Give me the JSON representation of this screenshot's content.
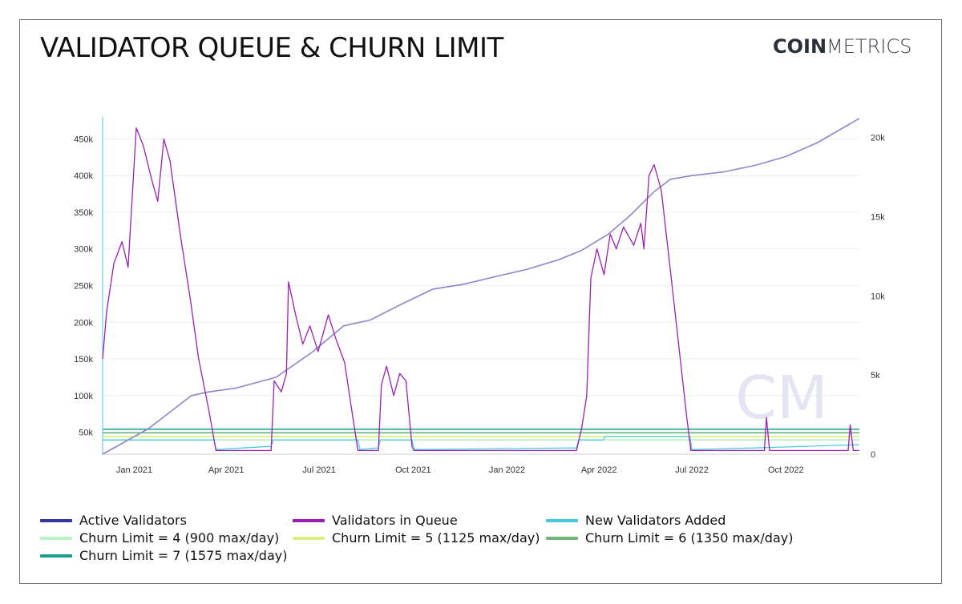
{
  "header": {
    "title": "VALIDATOR QUEUE & CHURN LIMIT",
    "brand_bold": "COIN",
    "brand_thin": "METRICS",
    "watermark": "CM"
  },
  "colors": {
    "active_validators": "#8b87cc",
    "validators_in_queue": "#9b1fb2",
    "new_validators_added": "#43c8dd",
    "churn4": "#b8f2c8",
    "churn5": "#d8f07a",
    "churn6": "#6db87a",
    "churn7": "#1f9e8f",
    "legend_active": "#3336a0",
    "grid": "#ececec",
    "watermark": "#e3e6f2"
  },
  "chart_data": {
    "type": "line",
    "x_ticks": [
      "Jan 2021",
      "Apr 2021",
      "Jul 2021",
      "Oct 2021",
      "Jan 2022",
      "Apr 2022",
      "Jul 2022",
      "Oct 2022"
    ],
    "x_domain": [
      "2020-12-01",
      "2022-12-12"
    ],
    "y_left": {
      "min": 20000,
      "max": 480000,
      "ticks": [
        "50k",
        "100k",
        "150k",
        "200k",
        "250k",
        "300k",
        "350k",
        "400k",
        "450k"
      ],
      "tick_values": [
        50000,
        100000,
        150000,
        200000,
        250000,
        300000,
        350000,
        400000,
        450000
      ]
    },
    "y_right": {
      "min": 0,
      "max": 21300,
      "ticks": [
        "0",
        "5k",
        "10k",
        "15k",
        "20k"
      ],
      "tick_values": [
        0,
        5000,
        10000,
        15000,
        20000
      ]
    },
    "series": [
      {
        "name": "Active Validators",
        "axis": "left",
        "points": [
          [
            "2020-12-01",
            20000
          ],
          [
            "2021-01-15",
            55000
          ],
          [
            "2021-02-26",
            100000
          ],
          [
            "2021-03-15",
            105000
          ],
          [
            "2021-04-10",
            110000
          ],
          [
            "2021-05-20",
            125000
          ],
          [
            "2021-06-25",
            160000
          ],
          [
            "2021-07-25",
            195000
          ],
          [
            "2021-08-20",
            203000
          ],
          [
            "2021-09-20",
            225000
          ],
          [
            "2021-10-20",
            245000
          ],
          [
            "2021-11-20",
            252000
          ],
          [
            "2021-12-20",
            262000
          ],
          [
            "2022-01-20",
            272000
          ],
          [
            "2022-02-20",
            285000
          ],
          [
            "2022-03-15",
            298000
          ],
          [
            "2022-04-10",
            320000
          ],
          [
            "2022-05-01",
            345000
          ],
          [
            "2022-05-25",
            378000
          ],
          [
            "2022-06-10",
            395000
          ],
          [
            "2022-07-01",
            400000
          ],
          [
            "2022-08-01",
            405000
          ],
          [
            "2022-09-01",
            414000
          ],
          [
            "2022-10-01",
            426000
          ],
          [
            "2022-11-01",
            445000
          ],
          [
            "2022-12-12",
            478000
          ]
        ]
      },
      {
        "name": "Validators in Queue",
        "axis": "left",
        "points": [
          [
            "2020-12-01",
            150000
          ],
          [
            "2020-12-05",
            215000
          ],
          [
            "2020-12-12",
            280000
          ],
          [
            "2020-12-20",
            310000
          ],
          [
            "2020-12-26",
            275000
          ],
          [
            "2021-01-03",
            465000
          ],
          [
            "2021-01-10",
            440000
          ],
          [
            "2021-01-18",
            395000
          ],
          [
            "2021-01-24",
            365000
          ],
          [
            "2021-01-30",
            450000
          ],
          [
            "2021-02-05",
            420000
          ],
          [
            "2021-02-15",
            320000
          ],
          [
            "2021-02-25",
            230000
          ],
          [
            "2021-03-05",
            150000
          ],
          [
            "2021-03-15",
            80000
          ],
          [
            "2021-03-22",
            25000
          ],
          [
            "2021-05-15",
            25000
          ],
          [
            "2021-05-18",
            120000
          ],
          [
            "2021-05-25",
            105000
          ],
          [
            "2021-05-30",
            130000
          ],
          [
            "2021-06-01",
            255000
          ],
          [
            "2021-06-08",
            210000
          ],
          [
            "2021-06-15",
            170000
          ],
          [
            "2021-06-22",
            195000
          ],
          [
            "2021-06-30",
            160000
          ],
          [
            "2021-07-10",
            210000
          ],
          [
            "2021-07-18",
            175000
          ],
          [
            "2021-07-26",
            145000
          ],
          [
            "2021-08-02",
            80000
          ],
          [
            "2021-08-08",
            25000
          ],
          [
            "2021-08-28",
            25000
          ],
          [
            "2021-08-31",
            115000
          ],
          [
            "2021-09-05",
            140000
          ],
          [
            "2021-09-12",
            100000
          ],
          [
            "2021-09-18",
            130000
          ],
          [
            "2021-09-24",
            120000
          ],
          [
            "2021-09-30",
            30000
          ],
          [
            "2021-10-02",
            25000
          ],
          [
            "2022-03-10",
            25000
          ],
          [
            "2022-03-15",
            55000
          ],
          [
            "2022-03-20",
            100000
          ],
          [
            "2022-03-24",
            260000
          ],
          [
            "2022-03-30",
            300000
          ],
          [
            "2022-04-06",
            265000
          ],
          [
            "2022-04-12",
            320000
          ],
          [
            "2022-04-18",
            300000
          ],
          [
            "2022-04-25",
            330000
          ],
          [
            "2022-05-05",
            305000
          ],
          [
            "2022-05-12",
            335000
          ],
          [
            "2022-05-15",
            300000
          ],
          [
            "2022-05-20",
            400000
          ],
          [
            "2022-05-25",
            415000
          ],
          [
            "2022-06-01",
            380000
          ],
          [
            "2022-06-10",
            270000
          ],
          [
            "2022-06-18",
            170000
          ],
          [
            "2022-06-26",
            70000
          ],
          [
            "2022-06-30",
            25000
          ],
          [
            "2022-09-10",
            25000
          ],
          [
            "2022-09-12",
            70000
          ],
          [
            "2022-09-15",
            25000
          ],
          [
            "2022-12-01",
            25000
          ],
          [
            "2022-12-03",
            60000
          ],
          [
            "2022-12-06",
            25000
          ],
          [
            "2022-12-12",
            25000
          ]
        ]
      },
      {
        "name": "New Validators Added",
        "axis": "right",
        "points": [
          [
            "2020-12-01",
            900
          ],
          [
            "2021-03-20",
            900
          ],
          [
            "2021-03-22",
            300
          ],
          [
            "2021-05-15",
            500
          ],
          [
            "2021-05-17",
            900
          ],
          [
            "2021-08-08",
            900
          ],
          [
            "2021-08-10",
            300
          ],
          [
            "2021-08-28",
            400
          ],
          [
            "2021-08-30",
            900
          ],
          [
            "2021-09-30",
            900
          ],
          [
            "2021-10-02",
            300
          ],
          [
            "2022-03-10",
            400
          ],
          [
            "2022-03-12",
            900
          ],
          [
            "2022-04-05",
            900
          ],
          [
            "2022-04-07",
            1125
          ],
          [
            "2022-06-29",
            1125
          ],
          [
            "2022-07-01",
            300
          ],
          [
            "2022-09-01",
            400
          ],
          [
            "2022-12-12",
            600
          ]
        ]
      },
      {
        "name": "Churn Limit = 4 (900 max/day)",
        "axis": "right",
        "value": 900
      },
      {
        "name": "Churn Limit = 5 (1125 max/day)",
        "axis": "right",
        "value": 1125
      },
      {
        "name": "Churn Limit = 6 (1350 max/day)",
        "axis": "right",
        "value": 1350
      },
      {
        "name": "Churn Limit = 7 (1575 max/day)",
        "axis": "right",
        "value": 1575
      }
    ],
    "legend_placement": "bottom",
    "grid": true
  }
}
